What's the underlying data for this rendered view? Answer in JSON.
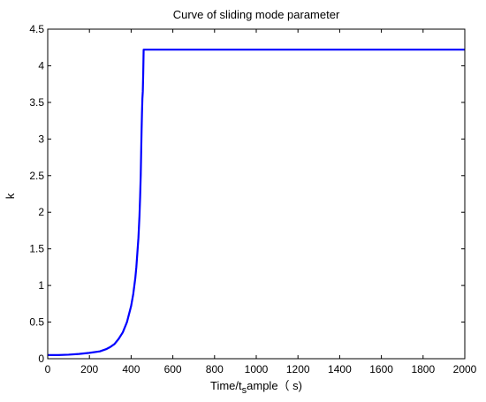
{
  "chart_data": {
    "type": "line",
    "title": "Curve of sliding mode parameter",
    "xlabel": {
      "prefix": "Time/t",
      "subscript": "s",
      "suffix": "ample（ s)"
    },
    "ylabel": "k",
    "xlim": [
      0,
      2000
    ],
    "ylim": [
      0,
      4.5
    ],
    "xticks": [
      "0",
      "200",
      "400",
      "600",
      "800",
      "1000",
      "1200",
      "1400",
      "1600",
      "1800",
      "2000"
    ],
    "yticks": [
      "0",
      "0.5",
      "1",
      "1.5",
      "2",
      "2.5",
      "3",
      "3.5",
      "4",
      "4.5"
    ],
    "grid": false,
    "series": [
      {
        "color": "#0000ff",
        "x": [
          0,
          50,
          100,
          150,
          200,
          250,
          280,
          300,
          320,
          340,
          360,
          380,
          400,
          410,
          420,
          425,
          430,
          435,
          440,
          443,
          446,
          448,
          450,
          452,
          454,
          456,
          458,
          460,
          2000
        ],
        "y": [
          0.05,
          0.05,
          0.055,
          0.065,
          0.08,
          0.1,
          0.13,
          0.16,
          0.2,
          0.27,
          0.36,
          0.5,
          0.72,
          0.88,
          1.1,
          1.25,
          1.45,
          1.65,
          1.95,
          2.2,
          2.5,
          2.8,
          3.1,
          3.35,
          3.55,
          3.65,
          3.9,
          4.22,
          4.22
        ]
      }
    ]
  }
}
